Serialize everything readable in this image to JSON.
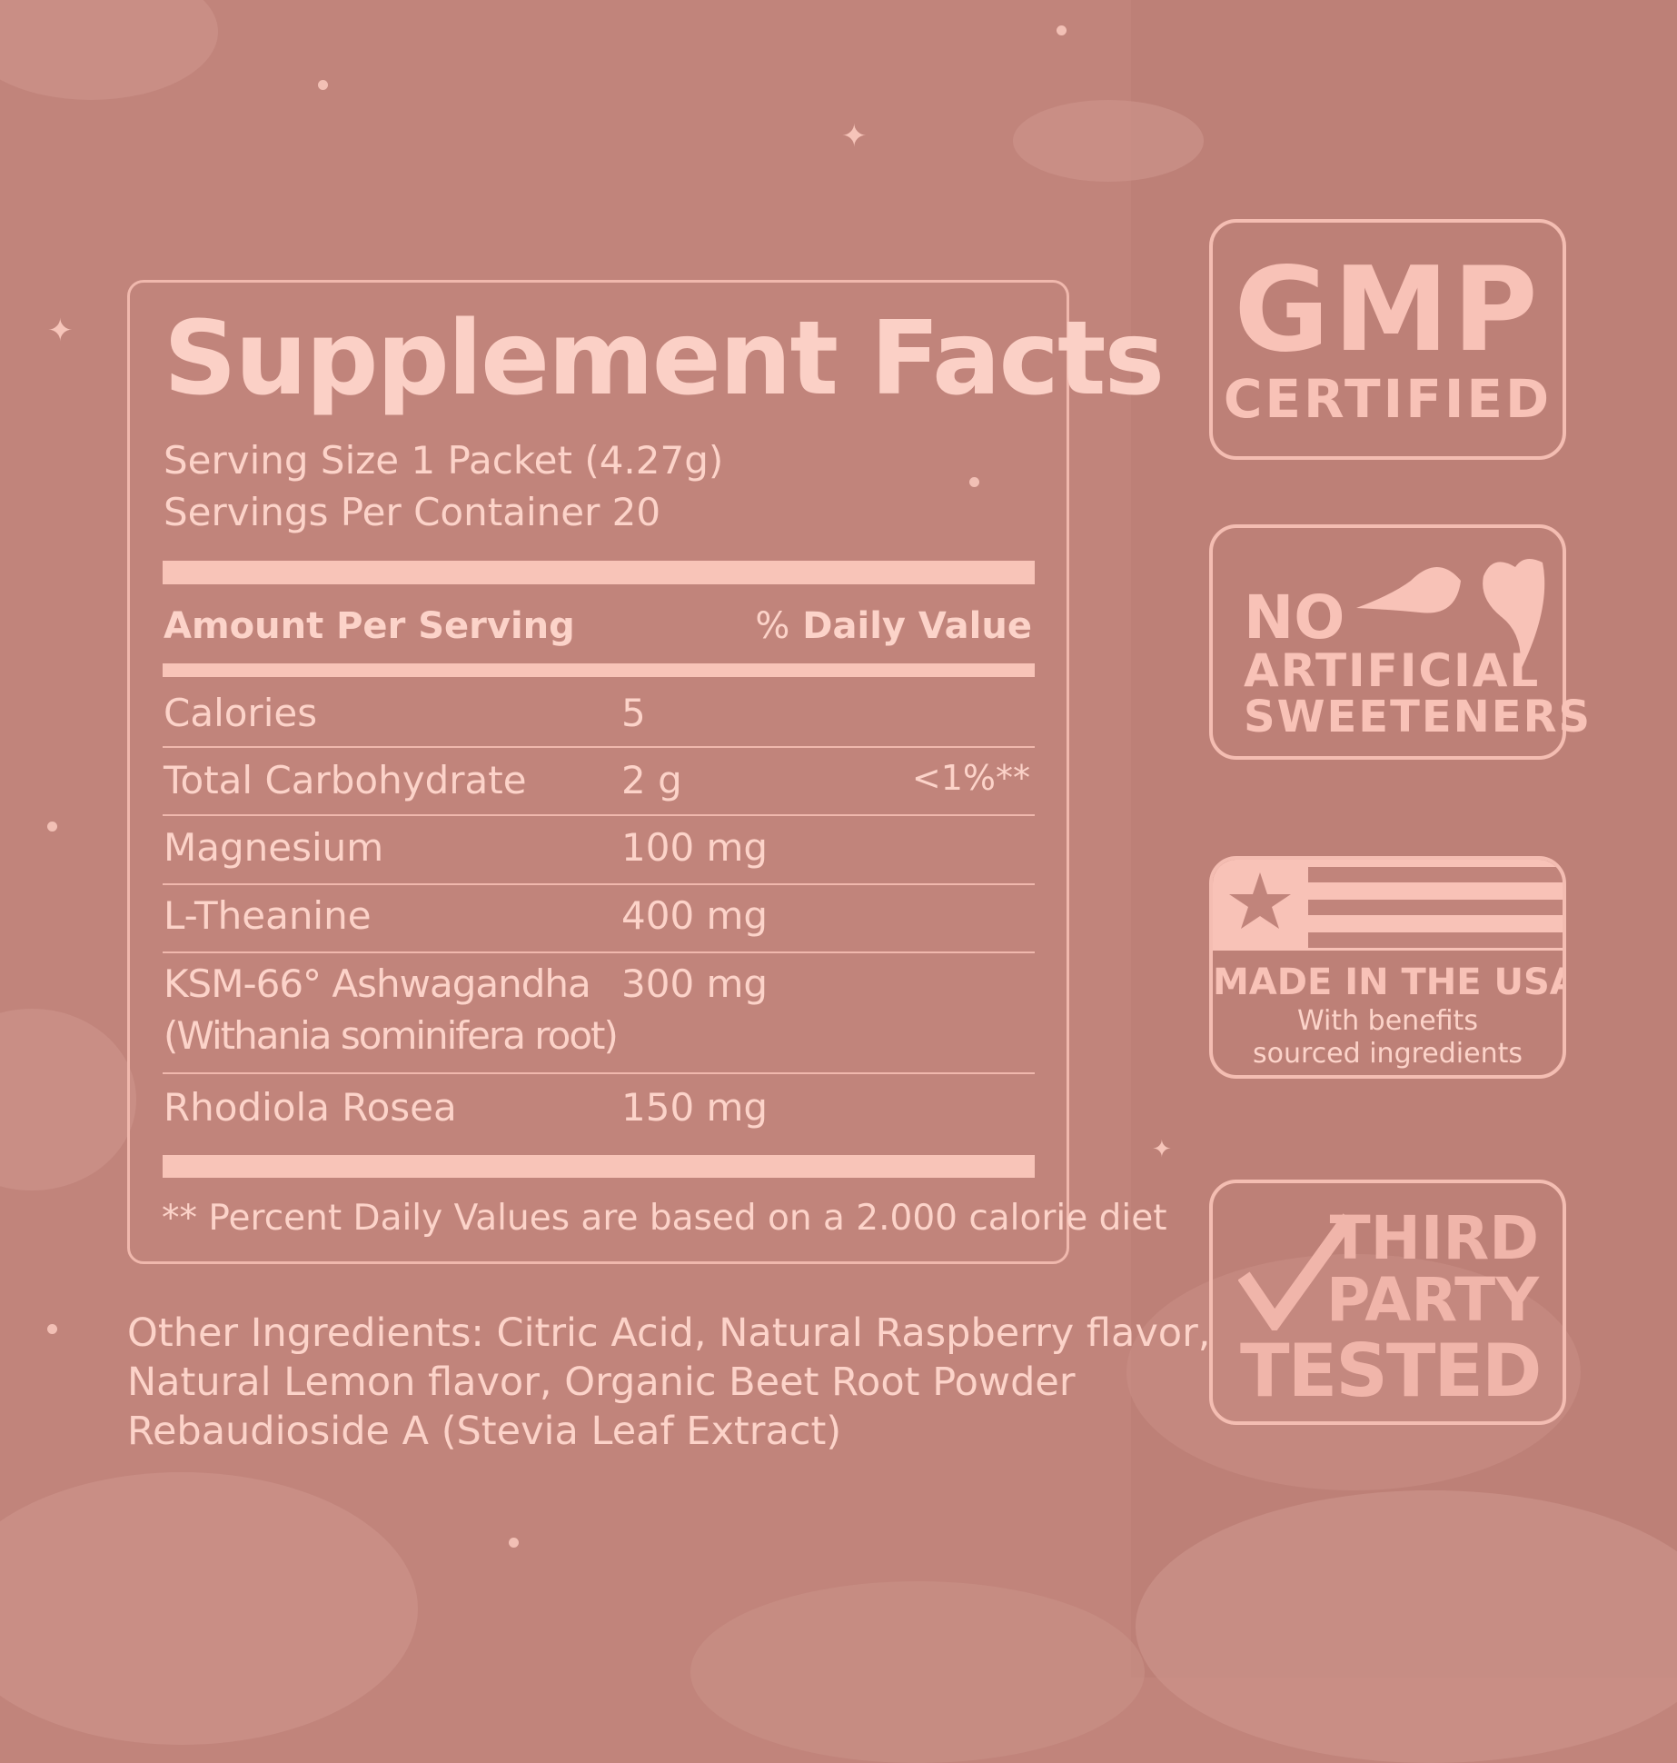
{
  "facts": {
    "title": "Supplement Facts",
    "serving_size": "Serving Size 1 Packet (4.27g)",
    "servings_per_container": "Servings Per Container 20",
    "amount_header": "Amount Per Serving",
    "dv_prefix": "%",
    "dv_header": "Daily Value",
    "rows": [
      {
        "name": "Calories",
        "amount": "5",
        "dv": ""
      },
      {
        "name": "Total Carbohydrate",
        "amount": "2 g",
        "dv": "<1%**"
      },
      {
        "name": "Magnesium",
        "amount": "100 mg",
        "dv": ""
      },
      {
        "name": "L-Theanine",
        "amount": "400 mg",
        "dv": ""
      },
      {
        "name": "KSM-66° Ashwagandha",
        "name2": "(Withania sominifera root)",
        "amount": "300 mg",
        "dv": ""
      },
      {
        "name": "Rhodiola Rosea",
        "amount": "150 mg",
        "dv": ""
      }
    ],
    "footnote": "** Percent Daily Values are based on a 2.000 calorie diet"
  },
  "other_ingredients": [
    "Other Ingredients: Citric Acid, Natural Raspberry flavor,",
    "Natural Lemon flavor, Organic Beet Root Powder",
    "Rebaudioside A (Stevia Leaf Extract)"
  ],
  "badges": {
    "gmp": {
      "line1": "GMP",
      "line2": "CERTIFIED"
    },
    "sweeteners": {
      "line1": "NO",
      "line2": "ARTIFICIAL",
      "line3": "SWEETENERS",
      "icon": "leaf-icon"
    },
    "usa": {
      "line1": "MADE IN THE USA",
      "line2": "With benefits",
      "line3": "sourced ingredients",
      "icon": "flag-icon"
    },
    "tested": {
      "line1": "THIRD",
      "line2": "PARTY",
      "line3": "TESTED",
      "icon": "checkmark-icon"
    }
  },
  "colors": {
    "background": "#c1847b",
    "text": "#fcd3c9"
  }
}
